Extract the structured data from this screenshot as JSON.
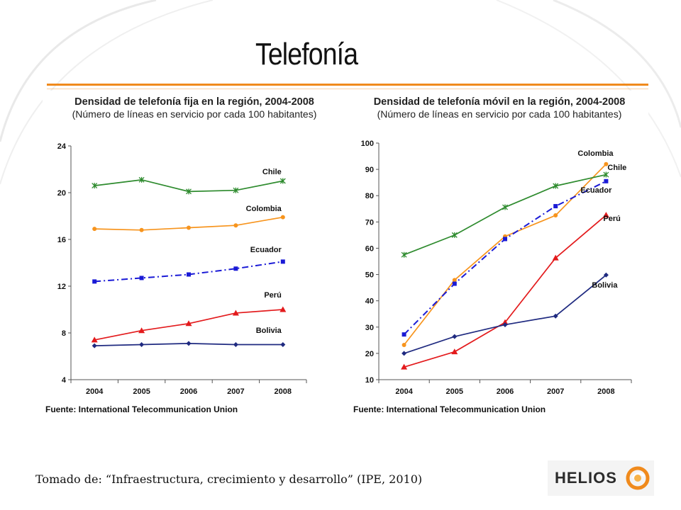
{
  "slide": {
    "title": "Telefonía",
    "footnote": "Tomado de: “Infraestructura, crecimiento y desarrollo” (IPE, 2010)",
    "logo_text": "HELIOS",
    "accent_color": "#f08a1c"
  },
  "chart_data": [
    {
      "type": "line",
      "title": "Densidad de telefonía fija en la región, 2004-2008",
      "subtitle": "(Número de líneas en servicio por cada 100 habitantes)",
      "source": "Fuente: International Telecommunication Union",
      "categories": [
        "2004",
        "2005",
        "2006",
        "2007",
        "2008"
      ],
      "ylim": [
        4,
        24
      ],
      "yticks": [
        4,
        8,
        12,
        16,
        20,
        24
      ],
      "grid": false,
      "series": [
        {
          "name": "Chile",
          "values": [
            20.6,
            21.1,
            20.1,
            20.2,
            21.0
          ],
          "color": "#2e8b2e",
          "marker": "x",
          "dash": "solid"
        },
        {
          "name": "Colombia",
          "values": [
            16.9,
            16.8,
            17.0,
            17.2,
            17.9
          ],
          "color": "#f7941d",
          "marker": "circle",
          "dash": "solid"
        },
        {
          "name": "Ecuador",
          "values": [
            12.4,
            12.7,
            13.0,
            13.5,
            14.1
          ],
          "color": "#1a1ad6",
          "marker": "square",
          "dash": "dashdot"
        },
        {
          "name": "Perú",
          "values": [
            7.4,
            8.2,
            8.8,
            9.7,
            10.0
          ],
          "color": "#e31a1c",
          "marker": "triangle",
          "dash": "solid"
        },
        {
          "name": "Bolivia",
          "values": [
            6.9,
            7.0,
            7.1,
            7.0,
            7.0
          ],
          "color": "#1f2a80",
          "marker": "diamond",
          "dash": "solid"
        }
      ]
    },
    {
      "type": "line",
      "title": "Densidad de telefonía móvil en la región, 2004-2008",
      "subtitle": "(Número de líneas en servicio por cada 100 habitantes)",
      "source": "Fuente: International Telecommunication Union",
      "categories": [
        "2004",
        "2005",
        "2006",
        "2007",
        "2008"
      ],
      "ylim": [
        10,
        100
      ],
      "yticks": [
        10,
        20,
        30,
        40,
        50,
        60,
        70,
        80,
        90,
        100
      ],
      "grid": false,
      "series": [
        {
          "name": "Colombia",
          "values": [
            23.2,
            47.9,
            64.5,
            72.5,
            92.0
          ],
          "color": "#f7941d",
          "marker": "circle",
          "dash": "solid"
        },
        {
          "name": "Chile",
          "values": [
            57.5,
            65.0,
            75.6,
            83.7,
            88.0
          ],
          "color": "#2e8b2e",
          "marker": "x",
          "dash": "solid"
        },
        {
          "name": "Ecuador",
          "values": [
            27.2,
            46.5,
            63.5,
            76.0,
            85.5
          ],
          "color": "#1a1ad6",
          "marker": "square",
          "dash": "dashdot"
        },
        {
          "name": "Perú",
          "values": [
            14.8,
            20.6,
            31.8,
            56.3,
            72.6
          ],
          "color": "#e31a1c",
          "marker": "triangle",
          "dash": "solid"
        },
        {
          "name": "Bolivia",
          "values": [
            20.0,
            26.4,
            30.9,
            34.2,
            49.8
          ],
          "color": "#1f2a80",
          "marker": "diamond",
          "dash": "solid"
        }
      ]
    }
  ]
}
